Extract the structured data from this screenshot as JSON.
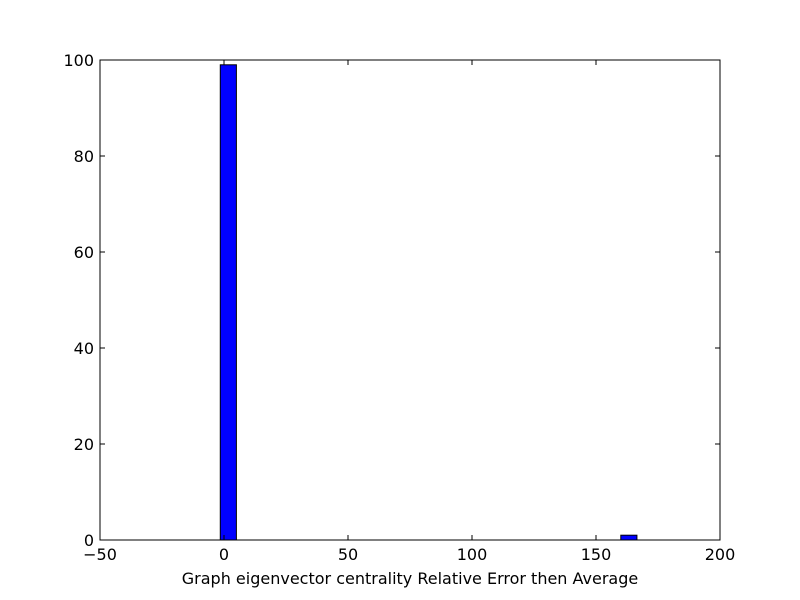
{
  "chart_data": {
    "type": "bar",
    "title": "",
    "xlabel": "Graph eigenvector centrality Relative Error then Average",
    "ylabel": "",
    "xlim": [
      -50,
      200
    ],
    "ylim": [
      0,
      100
    ],
    "xticks": [
      -50,
      0,
      50,
      100,
      150,
      200
    ],
    "yticks": [
      0,
      20,
      40,
      60,
      80,
      100
    ],
    "xtick_labels": [
      "−50",
      "0",
      "50",
      "100",
      "150",
      "200"
    ],
    "ytick_labels": [
      "0",
      "20",
      "40",
      "60",
      "80",
      "100"
    ],
    "grid": false,
    "bars": [
      {
        "x_start": -1.5,
        "x_end": 5.0,
        "value": 99
      },
      {
        "x_start": 160.0,
        "x_end": 166.5,
        "value": 1
      }
    ],
    "bar_color": "#0000ff",
    "edge_color": "#000000"
  }
}
